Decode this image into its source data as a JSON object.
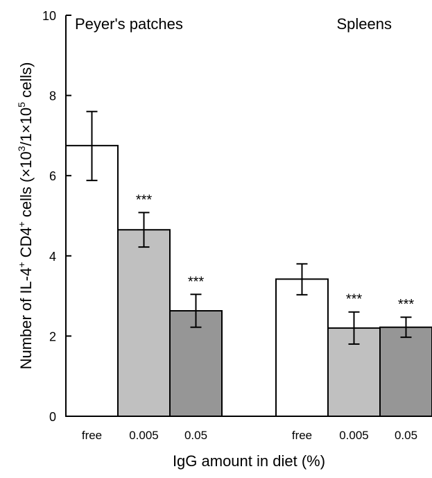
{
  "chart_data": {
    "type": "bar",
    "groups": [
      {
        "label": "Peyer's patches",
        "bars": [
          {
            "category": "free",
            "value": 6.75,
            "err_low": 5.88,
            "err_high": 7.6,
            "fill": "#ffffff",
            "sig": ""
          },
          {
            "category": "0.005",
            "value": 4.65,
            "err_low": 4.22,
            "err_high": 5.08,
            "fill": "#c0c0c0",
            "sig": "***"
          },
          {
            "category": "0.05",
            "value": 2.63,
            "err_low": 2.22,
            "err_high": 3.04,
            "fill": "#969696",
            "sig": "***"
          }
        ]
      },
      {
        "label": "Spleens",
        "bars": [
          {
            "category": "free",
            "value": 3.42,
            "err_low": 3.03,
            "err_high": 3.8,
            "fill": "#ffffff",
            "sig": ""
          },
          {
            "category": "0.005",
            "value": 2.2,
            "err_low": 1.8,
            "err_high": 2.6,
            "fill": "#c0c0c0",
            "sig": "***"
          },
          {
            "category": "0.05",
            "value": 2.22,
            "err_low": 1.97,
            "err_high": 2.47,
            "fill": "#969696",
            "sig": "***"
          }
        ]
      }
    ],
    "ylim": [
      0,
      10
    ],
    "yticks": [
      0,
      2,
      4,
      6,
      8,
      10
    ],
    "ylabel_parts": [
      {
        "t": "Number of IL-4"
      },
      {
        "t": "+",
        "sup": true
      },
      {
        "t": " CD4"
      },
      {
        "t": "+",
        "sup": true
      },
      {
        "t": " cells (×10"
      },
      {
        "t": "3",
        "sup": true
      },
      {
        "t": "/1×10"
      },
      {
        "t": "5",
        "sup": true
      },
      {
        "t": " cells)"
      }
    ],
    "xlabel": "IgG amount in diet (%)",
    "grid": false
  }
}
